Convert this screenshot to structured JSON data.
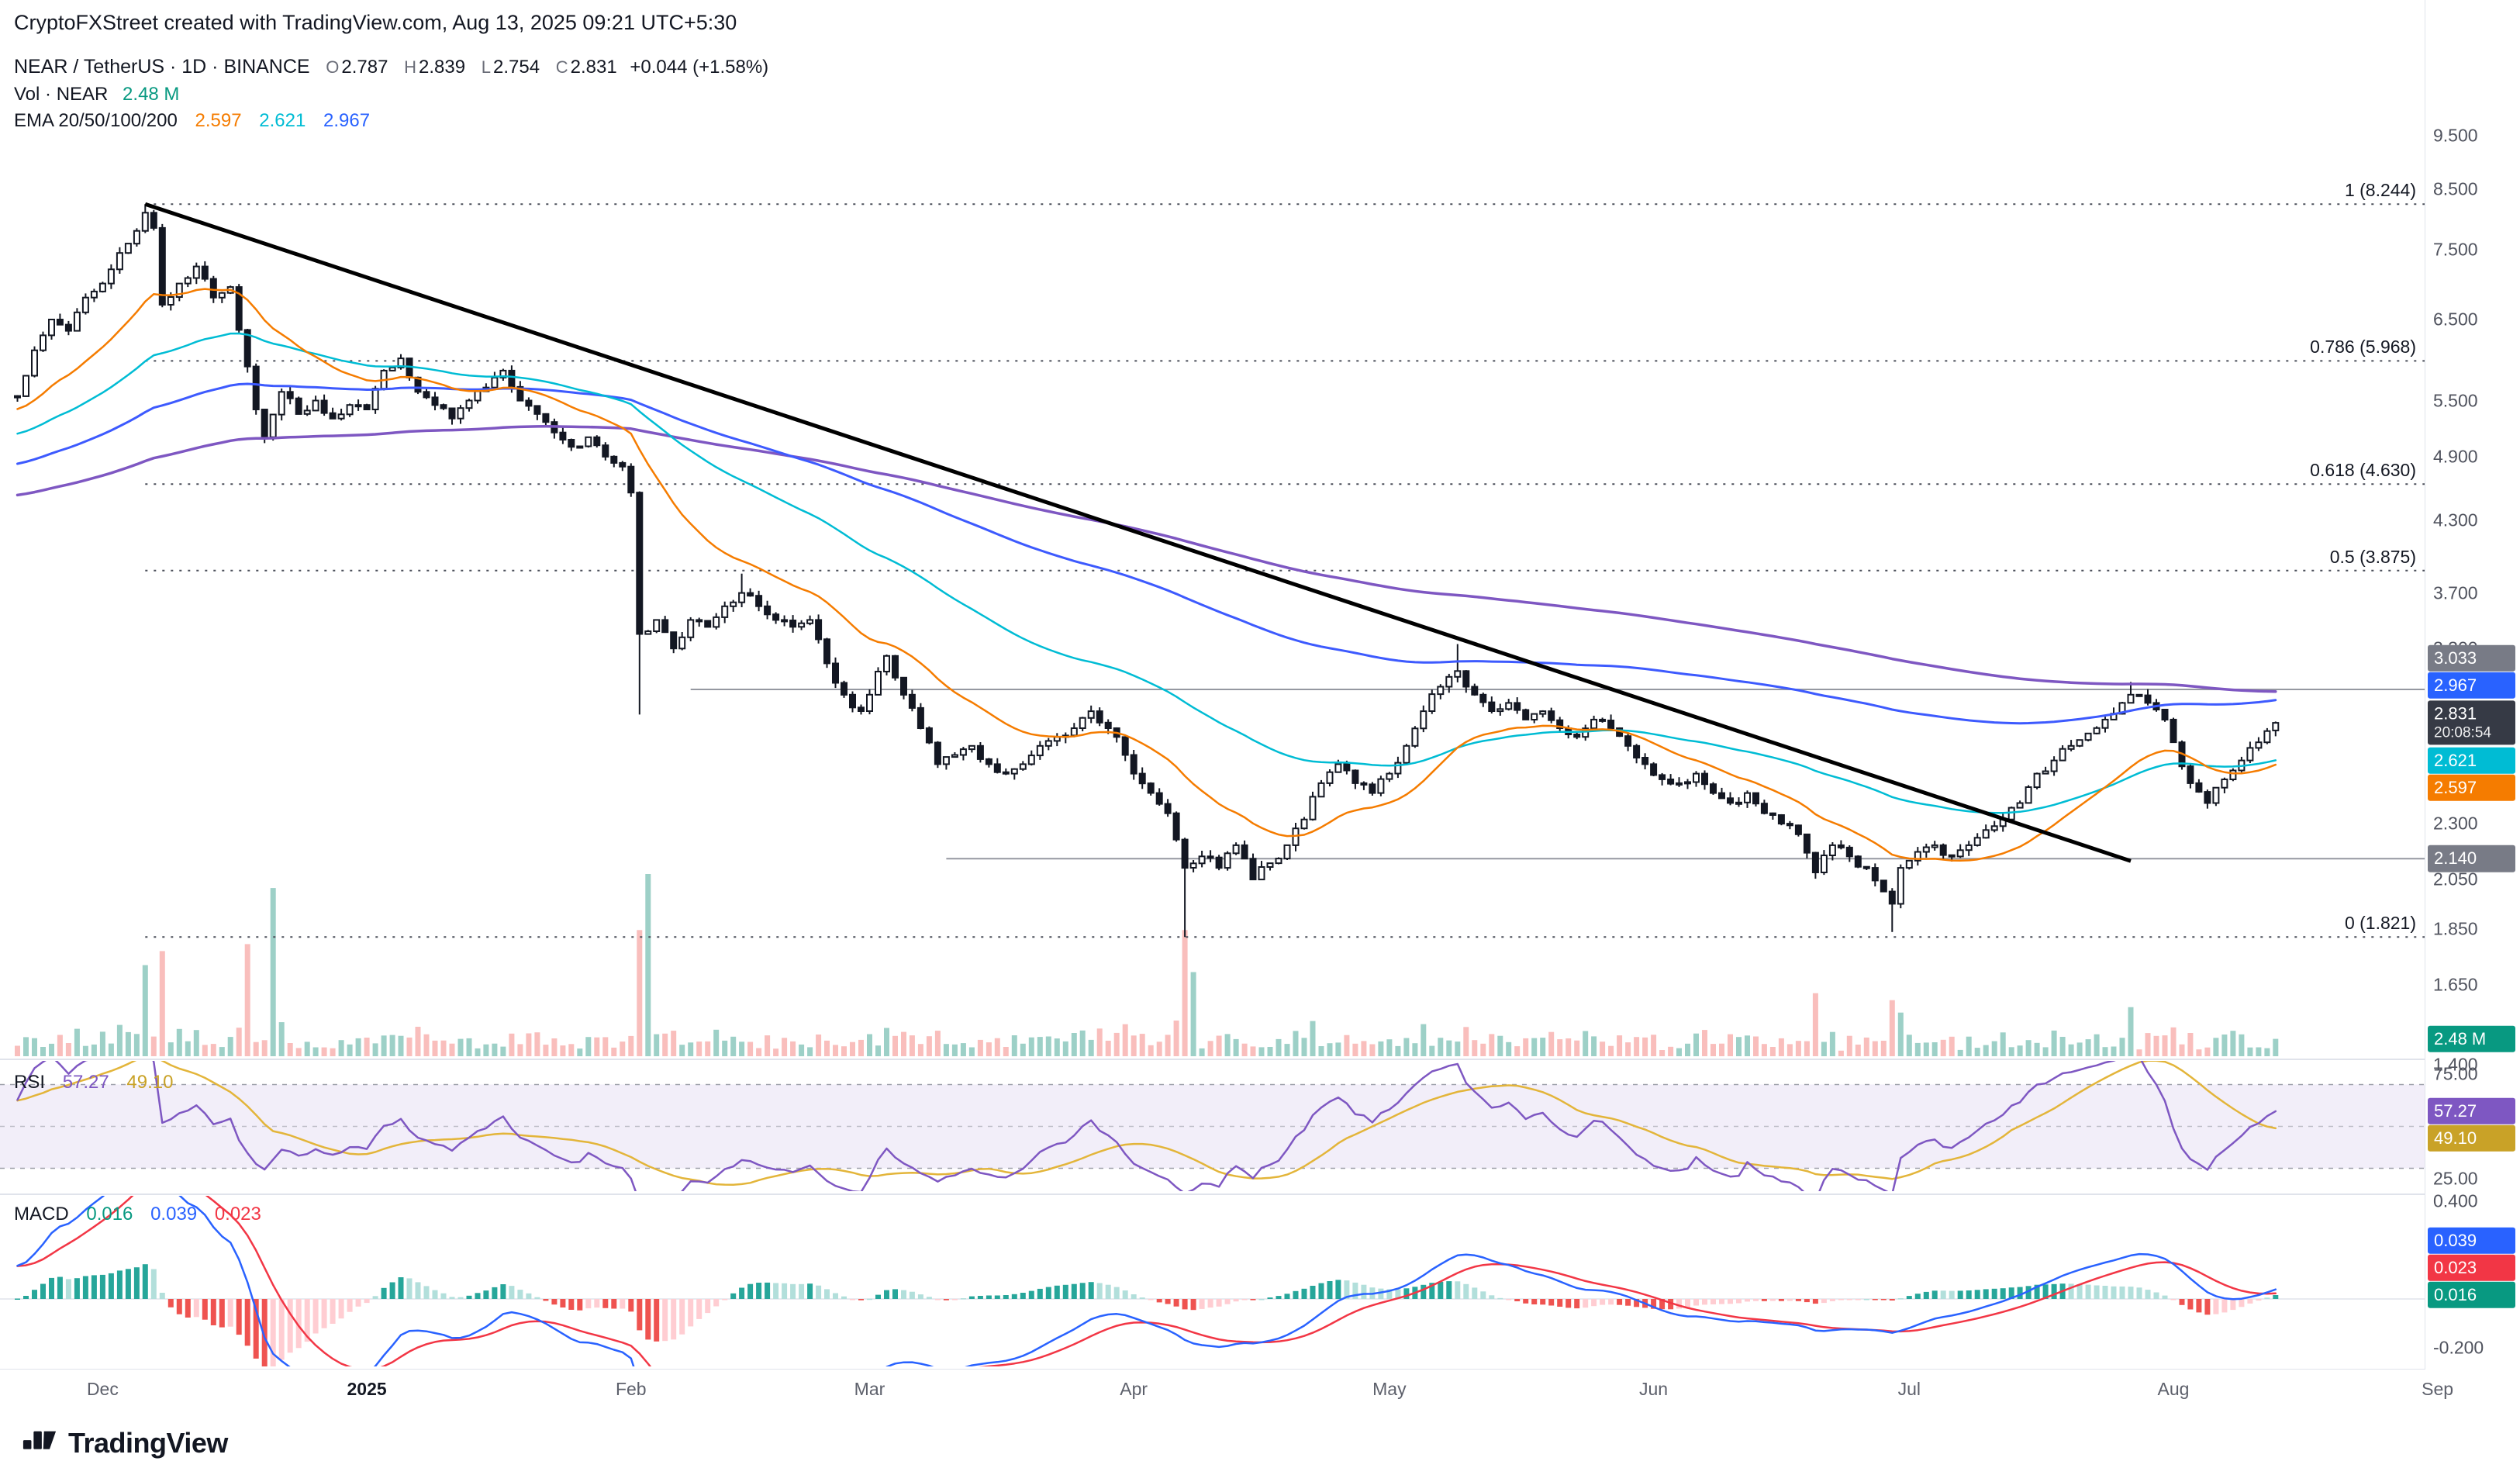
{
  "attribution": "CryptoFXStreet created with TradingView.com, Aug 13, 2025 09:21 UTC+5:30",
  "symbol_row": {
    "title": "NEAR / TetherUS · 1D · BINANCE",
    "o_label": "O",
    "o": "2.787",
    "h_label": "H",
    "h": "2.839",
    "l_label": "L",
    "l": "2.754",
    "c_label": "C",
    "c": "2.831",
    "change": "+0.044 (+1.58%)"
  },
  "volume_row": {
    "label": "Vol · NEAR",
    "value": "2.48 M"
  },
  "ema_row": {
    "label": "EMA 20/50/100/200",
    "v20": "2.597",
    "v50": "2.621",
    "v100": "2.967"
  },
  "rsi_row": {
    "label": "RSI",
    "v1": "57.27",
    "v2": "49.10"
  },
  "macd_row": {
    "label": "MACD",
    "hist": "0.016",
    "macd": "0.039",
    "signal": "0.023"
  },
  "logo": {
    "text": "TradingView"
  },
  "colors": {
    "bg": "#ffffff",
    "text": "#131722",
    "muted": "#6a6d78",
    "axis_border": "#e0e3eb",
    "candle_border": "#131722",
    "candle_up_fill": "#ffffff",
    "candle_down_fill": "#131722",
    "vol_up": "rgba(38,150,130,0.45)",
    "vol_down": "rgba(239,83,80,0.38)",
    "ema20": "#f57c00",
    "ema50": "#00bcd4",
    "ema100": "#3d5afe",
    "ema200": "#7e57c2",
    "trendline": "#000000",
    "hline": "#9598a1",
    "fib": "#4a4e59",
    "rsi_line": "#7e57c2",
    "rsi_ma": "#e3b53a",
    "rsi_band": "rgba(126,87,194,0.10)",
    "rsi_guide": "#9598a1",
    "macd_line": "#2962ff",
    "macd_signal": "#f23645",
    "hist_up": "#26a69a",
    "hist_up_weak": "#b2dfdb",
    "hist_down": "#ef5350",
    "hist_down_weak": "#ffcdd2",
    "badge_gray": "#787b86",
    "badge_dark": "#363a45",
    "badge_vol": "#089981",
    "badge_blue": "#2962ff",
    "badge_cyan": "#00bcd4",
    "badge_orange": "#f57c00",
    "badge_rsi": "#7e57c2",
    "badge_rsi_ma": "#c9a227",
    "badge_macd_sig": "#f23645",
    "badge_macd_hist": "#089981"
  },
  "price_axis": {
    "unit": "USDT",
    "ticks": [
      {
        "v": 9.5,
        "text": "9.500"
      },
      {
        "v": 8.5,
        "text": "8.500"
      },
      {
        "v": 7.5,
        "text": "7.500"
      },
      {
        "v": 6.5,
        "text": "6.500"
      },
      {
        "v": 5.5,
        "text": "5.500"
      },
      {
        "v": 4.9,
        "text": "4.900"
      },
      {
        "v": 4.3,
        "text": "4.300"
      },
      {
        "v": 3.7,
        "text": "3.700"
      },
      {
        "v": 3.3,
        "text": "3.300"
      },
      {
        "v": 2.3,
        "text": "2.300"
      },
      {
        "v": 2.05,
        "text": "2.050"
      },
      {
        "v": 1.85,
        "text": "1.850"
      },
      {
        "v": 1.65,
        "text": "1.650"
      },
      {
        "v": 1.4,
        "text": "1.400"
      }
    ],
    "badges": [
      {
        "text": "3.033",
        "bg": "#787b86",
        "price": 3.033
      },
      {
        "text": "2.967",
        "bg": "#2962ff",
        "price": 2.967
      },
      {
        "text": "2.831",
        "sub": "20:08:54",
        "bg": "#363a45",
        "price": 2.831,
        "anchor": true
      },
      {
        "text": "2.621",
        "bg": "#00bcd4",
        "price": 2.621
      },
      {
        "text": "2.597",
        "bg": "#f57c00",
        "price": 2.597
      },
      {
        "text": "2.140",
        "bg": "#787b86",
        "price": 2.14
      }
    ],
    "volume_badge": {
      "text": "2.48 M",
      "bg": "#089981"
    }
  },
  "rsi_axis": {
    "ticks": [
      {
        "v": 75,
        "text": "75.00"
      },
      {
        "v": 25,
        "text": "25.00"
      }
    ],
    "badges": [
      {
        "v": 57.27,
        "text": "57.27",
        "bg": "#7e57c2",
        "anchor": true
      },
      {
        "v": 49.1,
        "text": "49.10",
        "bg": "#c9a227"
      }
    ]
  },
  "macd_axis": {
    "ticks": [
      {
        "v": 0.4,
        "text": "0.400"
      },
      {
        "v": -0.2,
        "text": "-0.200"
      }
    ],
    "badges": [
      {
        "v": 0.039,
        "text": "0.039",
        "bg": "#2962ff"
      },
      {
        "v": 0.023,
        "text": "0.023",
        "bg": "#f23645"
      },
      {
        "v": 0.016,
        "text": "0.016",
        "bg": "#089981",
        "anchor": true
      }
    ]
  },
  "time_axis": {
    "labels": [
      {
        "text": "Dec",
        "t": 10
      },
      {
        "text": "2025",
        "t": 41,
        "bold": true
      },
      {
        "text": "Feb",
        "t": 72
      },
      {
        "text": "Mar",
        "t": 100
      },
      {
        "text": "Apr",
        "t": 131
      },
      {
        "text": "May",
        "t": 161
      },
      {
        "text": "Jun",
        "t": 192
      },
      {
        "text": "Jul",
        "t": 222
      },
      {
        "text": "Aug",
        "t": 253
      },
      {
        "text": "Sep",
        "t": 284
      }
    ]
  },
  "chart_data": {
    "type": "candlestick",
    "symbol": "NEAR/USDT",
    "interval": "1D",
    "exchange": "BINANCE",
    "scale": "logarithmic",
    "price_axis_range_hint": [
      1.4,
      9.5
    ],
    "last_bar": {
      "open": 2.787,
      "high": 2.839,
      "low": 2.754,
      "close": 2.831,
      "change": 0.044,
      "change_pct": 1.58,
      "volume_label": "2.48 M",
      "countdown": "20:08:54"
    },
    "ema_values": {
      "ema20": 2.597,
      "ema50": 2.621,
      "ema100": 2.967,
      "ema200": 3.02
    },
    "rsi_values": {
      "rsi": 57.27,
      "rsi_ma": 49.1,
      "bands": [
        70,
        50,
        30
      ]
    },
    "macd_values": {
      "macd": 0.039,
      "signal": 0.023,
      "hist": 0.016,
      "fast": 12,
      "slow": 26,
      "smoothing": 9
    },
    "fib_levels": [
      {
        "label": "1 (8.244)",
        "price": 8.244
      },
      {
        "label": "0.786 (5.968)",
        "price": 5.968
      },
      {
        "label": "0.618 (4.630)",
        "price": 4.63
      },
      {
        "label": "0.5 (3.875)",
        "price": 3.875
      },
      {
        "label": "0 (1.821)",
        "price": 1.821
      }
    ],
    "h_lines": [
      {
        "price": 3.033,
        "t_start": 79
      },
      {
        "price": 2.14,
        "t_start": 109
      }
    ],
    "trendline": {
      "t1": 15,
      "p1": 8.244,
      "t2": 248,
      "p2": 2.13
    },
    "bars_count": 266,
    "price_anchors": [
      [
        0,
        5.55
      ],
      [
        2,
        6.1
      ],
      [
        4,
        6.5
      ],
      [
        6,
        6.35
      ],
      [
        8,
        6.8
      ],
      [
        10,
        7.0
      ],
      [
        13,
        7.6
      ],
      [
        15,
        8.1
      ],
      [
        16,
        7.85
      ],
      [
        17,
        6.7
      ],
      [
        19,
        7.0
      ],
      [
        21,
        7.25
      ],
      [
        23,
        6.8
      ],
      [
        25,
        6.95
      ],
      [
        27,
        5.9
      ],
      [
        28,
        5.4
      ],
      [
        29,
        5.1
      ],
      [
        31,
        5.6
      ],
      [
        33,
        5.35
      ],
      [
        35,
        5.5
      ],
      [
        37,
        5.3
      ],
      [
        39,
        5.45
      ],
      [
        41,
        5.4
      ],
      [
        43,
        5.85
      ],
      [
        45,
        6.0
      ],
      [
        47,
        5.6
      ],
      [
        49,
        5.45
      ],
      [
        51,
        5.3
      ],
      [
        53,
        5.5
      ],
      [
        55,
        5.65
      ],
      [
        57,
        5.85
      ],
      [
        59,
        5.5
      ],
      [
        61,
        5.35
      ],
      [
        63,
        5.15
      ],
      [
        65,
        5.0
      ],
      [
        67,
        5.1
      ],
      [
        69,
        4.9
      ],
      [
        71,
        4.8
      ],
      [
        72,
        4.55
      ],
      [
        73,
        3.4
      ],
      [
        75,
        3.5
      ],
      [
        77,
        3.3
      ],
      [
        79,
        3.5
      ],
      [
        81,
        3.45
      ],
      [
        83,
        3.6
      ],
      [
        85,
        3.7
      ],
      [
        87,
        3.6
      ],
      [
        89,
        3.5
      ],
      [
        91,
        3.45
      ],
      [
        93,
        3.5
      ],
      [
        95,
        3.2
      ],
      [
        97,
        3.0
      ],
      [
        99,
        2.9
      ],
      [
        100,
        3.0
      ],
      [
        102,
        3.25
      ],
      [
        104,
        3.0
      ],
      [
        106,
        2.8
      ],
      [
        108,
        2.6
      ],
      [
        110,
        2.65
      ],
      [
        112,
        2.7
      ],
      [
        114,
        2.6
      ],
      [
        116,
        2.55
      ],
      [
        118,
        2.6
      ],
      [
        120,
        2.7
      ],
      [
        122,
        2.75
      ],
      [
        124,
        2.8
      ],
      [
        126,
        2.9
      ],
      [
        128,
        2.8
      ],
      [
        130,
        2.65
      ],
      [
        131,
        2.55
      ],
      [
        133,
        2.45
      ],
      [
        135,
        2.35
      ],
      [
        137,
        2.1
      ],
      [
        139,
        2.15
      ],
      [
        141,
        2.1
      ],
      [
        143,
        2.2
      ],
      [
        145,
        2.05
      ],
      [
        147,
        2.12
      ],
      [
        149,
        2.2
      ],
      [
        151,
        2.32
      ],
      [
        153,
        2.5
      ],
      [
        155,
        2.6
      ],
      [
        157,
        2.5
      ],
      [
        159,
        2.45
      ],
      [
        161,
        2.55
      ],
      [
        163,
        2.7
      ],
      [
        165,
        2.9
      ],
      [
        167,
        3.05
      ],
      [
        169,
        3.15
      ],
      [
        171,
        3.0
      ],
      [
        173,
        2.9
      ],
      [
        175,
        2.95
      ],
      [
        177,
        2.85
      ],
      [
        179,
        2.9
      ],
      [
        181,
        2.8
      ],
      [
        183,
        2.75
      ],
      [
        185,
        2.85
      ],
      [
        187,
        2.8
      ],
      [
        189,
        2.7
      ],
      [
        191,
        2.6
      ],
      [
        193,
        2.52
      ],
      [
        195,
        2.5
      ],
      [
        197,
        2.55
      ],
      [
        199,
        2.45
      ],
      [
        201,
        2.4
      ],
      [
        203,
        2.45
      ],
      [
        205,
        2.35
      ],
      [
        207,
        2.3
      ],
      [
        209,
        2.25
      ],
      [
        211,
        2.08
      ],
      [
        213,
        2.2
      ],
      [
        215,
        2.15
      ],
      [
        217,
        2.1
      ],
      [
        219,
        2.0
      ],
      [
        220,
        1.95
      ],
      [
        221,
        2.1
      ],
      [
        223,
        2.17
      ],
      [
        225,
        2.2
      ],
      [
        227,
        2.15
      ],
      [
        229,
        2.2
      ],
      [
        231,
        2.27
      ],
      [
        233,
        2.32
      ],
      [
        235,
        2.4
      ],
      [
        237,
        2.55
      ],
      [
        239,
        2.62
      ],
      [
        241,
        2.7
      ],
      [
        243,
        2.77
      ],
      [
        245,
        2.85
      ],
      [
        247,
        2.95
      ],
      [
        248,
        3.0
      ],
      [
        250,
        2.95
      ],
      [
        252,
        2.85
      ],
      [
        253,
        2.72
      ],
      [
        255,
        2.5
      ],
      [
        257,
        2.4
      ],
      [
        259,
        2.52
      ],
      [
        261,
        2.62
      ],
      [
        263,
        2.72
      ],
      [
        265,
        2.831
      ]
    ],
    "overrides": {
      "15": {
        "h": 8.244
      },
      "73": {
        "l": 2.88
      },
      "85": {
        "h": 3.85
      },
      "137": {
        "l": 1.821
      },
      "169": {
        "h": 3.33
      },
      "220": {
        "l": 1.84
      },
      "248": {
        "h": 3.08
      },
      "265": {
        "o": 2.787,
        "h": 2.839,
        "l": 2.754,
        "c": 2.831
      }
    },
    "vol_spikes": {
      "15": 13,
      "17": 15,
      "27": 16,
      "30": 24,
      "73": 18,
      "74": 26,
      "137": 18,
      "138": 12,
      "211": 9,
      "220": 8,
      "248": 7,
      "265": 2.48
    }
  }
}
